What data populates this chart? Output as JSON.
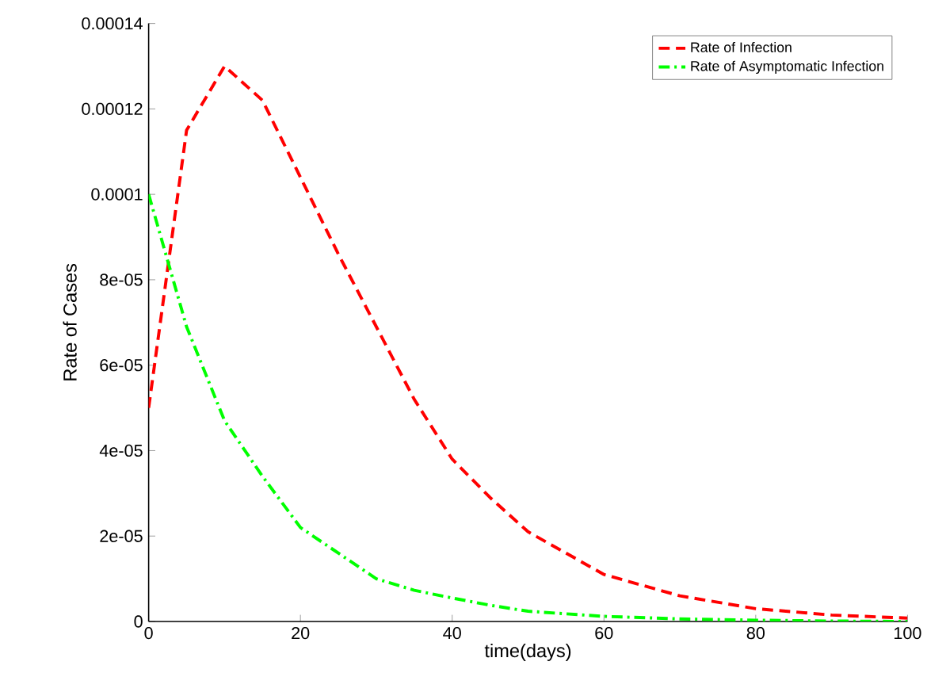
{
  "chart_data": {
    "type": "line",
    "xlabel": "time(days)",
    "ylabel": "Rate of Cases",
    "x": [
      0,
      5,
      10,
      15,
      20,
      25,
      30,
      35,
      40,
      45,
      50,
      60,
      70,
      80,
      90,
      100
    ],
    "series": [
      {
        "name": "Rate of Infection",
        "color": "#ff0000",
        "line_style": "dashed",
        "values": [
          5e-05,
          0.000115,
          0.00013,
          0.000122,
          0.000104,
          8.6e-05,
          6.9e-05,
          5.2e-05,
          3.8e-05,
          2.9e-05,
          2.1e-05,
          1.1e-05,
          6e-06,
          3e-06,
          1.5e-06,
          8e-07
        ]
      },
      {
        "name": "Rate of Asymptomatic Infection",
        "color": "#00ff00",
        "line_style": "dashdot",
        "values": [
          0.0001,
          6.9e-05,
          4.7e-05,
          3.4e-05,
          2.2e-05,
          1.6e-05,
          1e-05,
          7.3e-06,
          5.5e-06,
          3.8e-06,
          2.4e-06,
          1.2e-06,
          6e-07,
          3e-07,
          1e-07,
          0
        ]
      }
    ],
    "xlim": [
      0,
      100
    ],
    "ylim": [
      0,
      0.00014
    ],
    "xticks": [
      0,
      20,
      40,
      60,
      80,
      100
    ],
    "yticks": [
      0,
      {
        "value": 2e-05,
        "label": "2e-05"
      },
      {
        "value": 4e-05,
        "label": "4e-05"
      },
      {
        "value": 6e-05,
        "label": "6e-05"
      },
      {
        "value": 8e-05,
        "label": "8e-05"
      },
      0.0001,
      0.00012,
      0.00014
    ],
    "grid": false,
    "legend": "top right",
    "marker": "none"
  }
}
